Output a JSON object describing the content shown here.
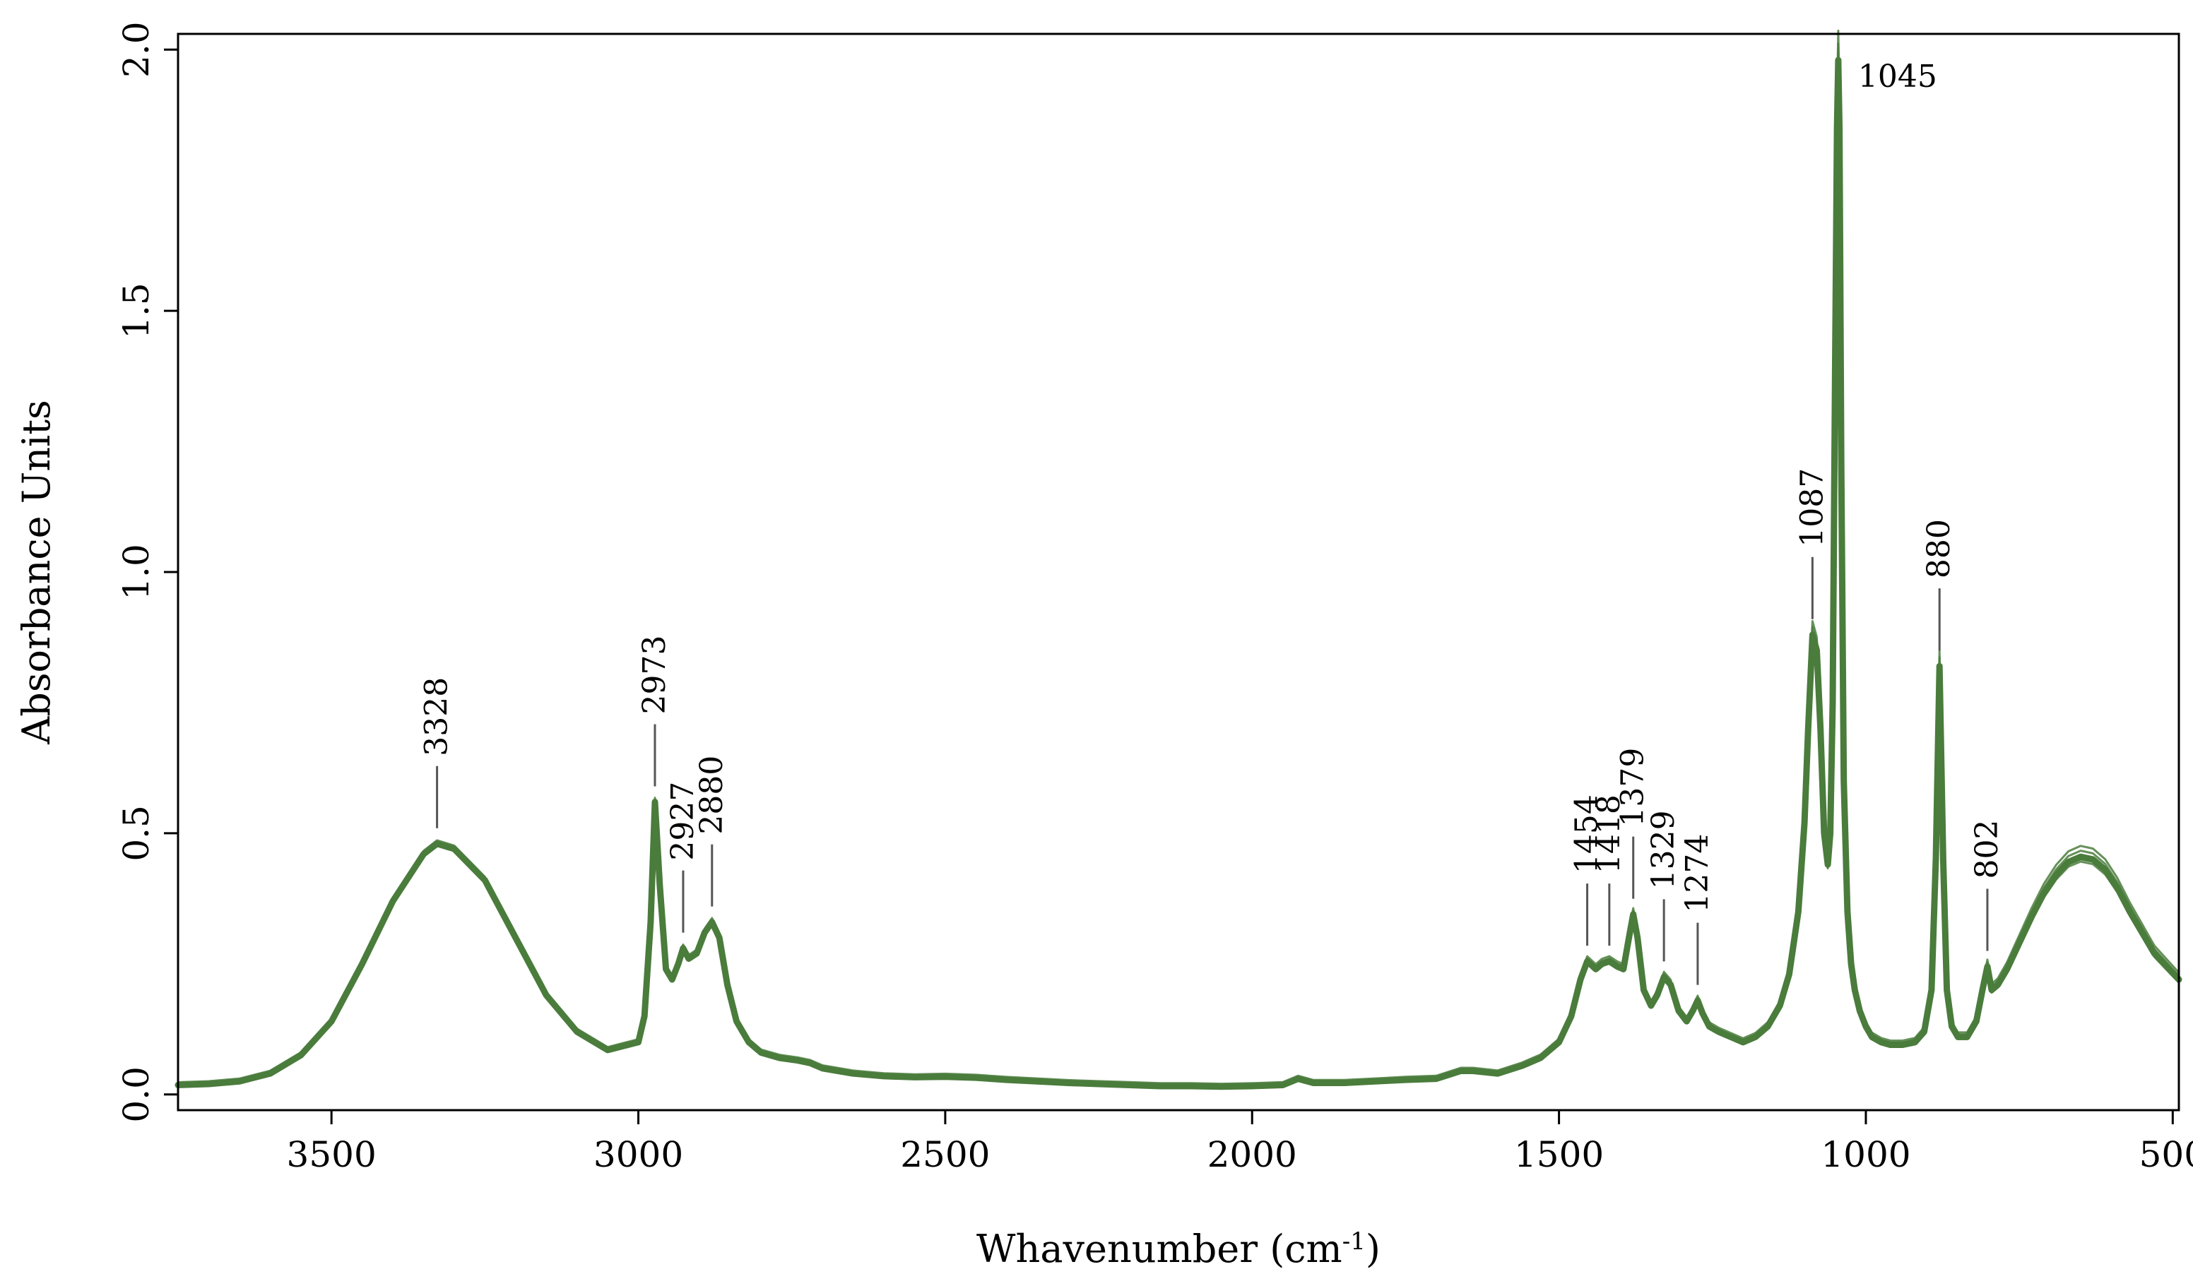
{
  "chart_data": {
    "type": "line",
    "title": "",
    "xlabel": "Whavenumber (cm",
    "xlabel_sup": "-1",
    "xlabel_close": ")",
    "ylabel": "Absorbance Units",
    "xlim": [
      3750,
      490
    ],
    "ylim": [
      -0.03,
      2.03
    ],
    "x_reversed": true,
    "grid": false,
    "line_color": "#4a7c3c",
    "x_ticks": [
      {
        "value": 3500,
        "label": "3500"
      },
      {
        "value": 3000,
        "label": "3000"
      },
      {
        "value": 2500,
        "label": "2500"
      },
      {
        "value": 2000,
        "label": "2000"
      },
      {
        "value": 1500,
        "label": "1500"
      },
      {
        "value": 1000,
        "label": "1000"
      },
      {
        "value": 500,
        "label": "500"
      }
    ],
    "y_ticks": [
      {
        "value": 0.0,
        "label": "0.0"
      },
      {
        "value": 0.5,
        "label": "0.5"
      },
      {
        "value": 1.0,
        "label": "1.0"
      },
      {
        "value": 1.5,
        "label": "1.5"
      },
      {
        "value": 2.0,
        "label": "2.0"
      }
    ],
    "series": [
      {
        "values_ref": "spectrum",
        "offset": 0.0
      },
      {
        "values_ref": "spectrum",
        "offset": 0.01
      },
      {
        "values_ref": "spectrum",
        "offset": -0.008
      },
      {
        "values_ref": "spectrum",
        "offset": 0.018
      },
      {
        "values_ref": "spectrum",
        "offset": -0.004
      }
    ],
    "spectrum": {
      "x": [
        3750,
        3700,
        3650,
        3600,
        3550,
        3500,
        3450,
        3400,
        3350,
        3328,
        3300,
        3250,
        3200,
        3150,
        3100,
        3050,
        3000,
        2990,
        2980,
        2973,
        2965,
        2955,
        2945,
        2935,
        2927,
        2918,
        2905,
        2892,
        2880,
        2868,
        2855,
        2840,
        2820,
        2800,
        2770,
        2740,
        2720,
        2700,
        2650,
        2600,
        2550,
        2500,
        2450,
        2400,
        2350,
        2300,
        2250,
        2200,
        2150,
        2100,
        2050,
        2000,
        1950,
        1925,
        1900,
        1850,
        1800,
        1750,
        1700,
        1660,
        1640,
        1600,
        1560,
        1530,
        1500,
        1480,
        1465,
        1454,
        1440,
        1430,
        1418,
        1405,
        1395,
        1386,
        1379,
        1372,
        1362,
        1350,
        1340,
        1329,
        1318,
        1305,
        1292,
        1282,
        1274,
        1266,
        1255,
        1240,
        1220,
        1200,
        1180,
        1160,
        1140,
        1125,
        1110,
        1100,
        1094,
        1087,
        1080,
        1074,
        1068,
        1062,
        1058,
        1054,
        1050,
        1047,
        1045,
        1043,
        1040,
        1036,
        1030,
        1024,
        1018,
        1010,
        1000,
        990,
        975,
        960,
        940,
        920,
        905,
        893,
        886,
        880,
        874,
        868,
        860,
        850,
        835,
        820,
        810,
        802,
        795,
        785,
        770,
        750,
        730,
        710,
        690,
        670,
        650,
        630,
        610,
        590,
        570,
        550,
        530,
        510,
        490
      ],
      "y": [
        0.018,
        0.02,
        0.025,
        0.04,
        0.075,
        0.14,
        0.25,
        0.37,
        0.46,
        0.48,
        0.47,
        0.41,
        0.3,
        0.19,
        0.12,
        0.085,
        0.1,
        0.15,
        0.33,
        0.56,
        0.4,
        0.24,
        0.22,
        0.25,
        0.28,
        0.26,
        0.27,
        0.31,
        0.33,
        0.3,
        0.21,
        0.14,
        0.1,
        0.08,
        0.07,
        0.065,
        0.06,
        0.05,
        0.04,
        0.035,
        0.033,
        0.034,
        0.032,
        0.028,
        0.025,
        0.022,
        0.02,
        0.018,
        0.016,
        0.016,
        0.015,
        0.016,
        0.018,
        0.03,
        0.022,
        0.022,
        0.025,
        0.028,
        0.03,
        0.045,
        0.045,
        0.04,
        0.055,
        0.07,
        0.1,
        0.15,
        0.22,
        0.255,
        0.24,
        0.25,
        0.255,
        0.245,
        0.24,
        0.3,
        0.345,
        0.3,
        0.2,
        0.17,
        0.19,
        0.225,
        0.21,
        0.16,
        0.14,
        0.16,
        0.18,
        0.155,
        0.13,
        0.12,
        0.11,
        0.1,
        0.11,
        0.13,
        0.17,
        0.23,
        0.35,
        0.52,
        0.7,
        0.88,
        0.85,
        0.7,
        0.5,
        0.44,
        0.5,
        0.75,
        1.4,
        1.85,
        1.98,
        1.85,
        1.2,
        0.6,
        0.35,
        0.25,
        0.2,
        0.16,
        0.13,
        0.11,
        0.1,
        0.095,
        0.095,
        0.1,
        0.12,
        0.2,
        0.45,
        0.82,
        0.45,
        0.2,
        0.13,
        0.11,
        0.11,
        0.14,
        0.2,
        0.245,
        0.2,
        0.21,
        0.24,
        0.29,
        0.34,
        0.385,
        0.42,
        0.445,
        0.455,
        0.45,
        0.43,
        0.395,
        0.35,
        0.31,
        0.27,
        0.245,
        0.22
      ]
    },
    "annotations": [
      {
        "label": "3328",
        "x": 3328,
        "y": 0.48
      },
      {
        "label": "2973",
        "x": 2973,
        "y": 0.56
      },
      {
        "label": "2927",
        "x": 2927,
        "y": 0.28
      },
      {
        "label": "2880",
        "x": 2880,
        "y": 0.33
      },
      {
        "label": "1454",
        "x": 1454,
        "y": 0.255
      },
      {
        "label": "1418",
        "x": 1418,
        "y": 0.255
      },
      {
        "label": "1379",
        "x": 1379,
        "y": 0.345
      },
      {
        "label": "1329",
        "x": 1329,
        "y": 0.225
      },
      {
        "label": "1274",
        "x": 1274,
        "y": 0.18
      },
      {
        "label": "1087",
        "x": 1087,
        "y": 0.88
      },
      {
        "label": "1045",
        "x": 1045,
        "y": 1.98
      },
      {
        "label": "880",
        "x": 880,
        "y": 0.82
      },
      {
        "label": "802",
        "x": 802,
        "y": 0.245
      }
    ]
  }
}
